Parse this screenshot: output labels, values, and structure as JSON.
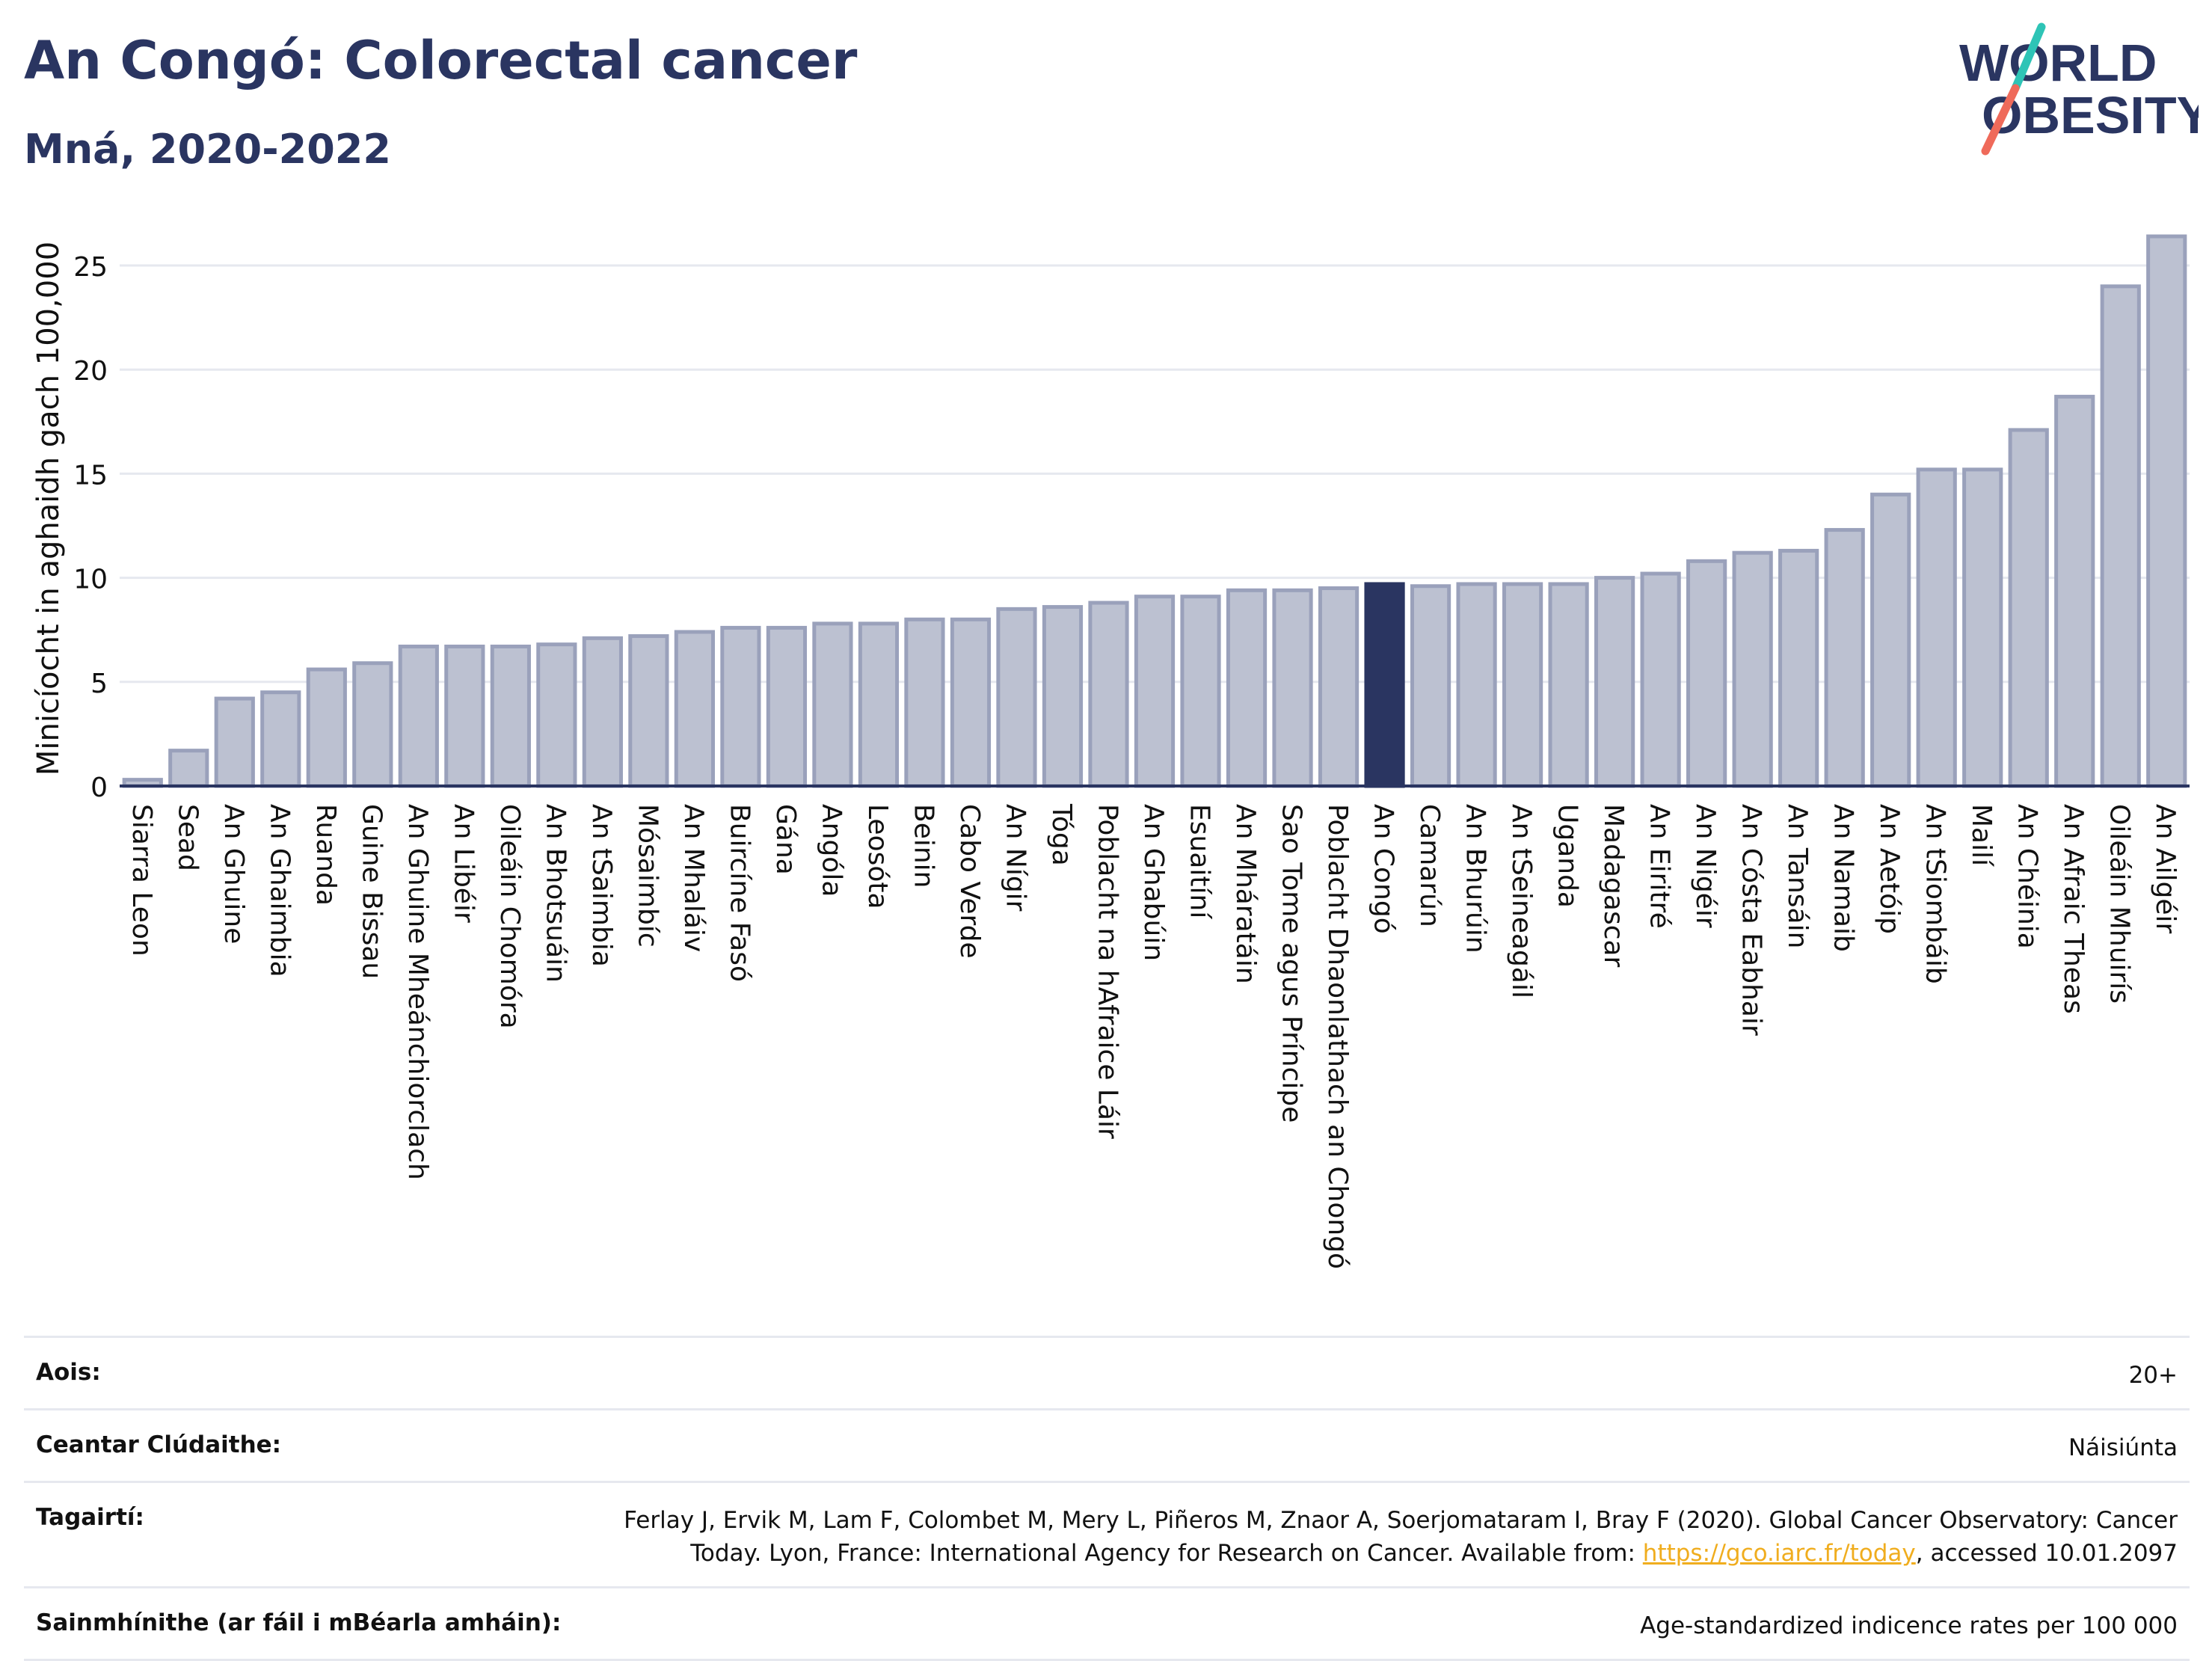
{
  "header": {
    "title": "An Congó: Colorectal cancer",
    "subtitle": "Mná, 2020-2022"
  },
  "logo": {
    "line1": "WORLD",
    "line2": "OBESITY",
    "name": "world-obesity-logo"
  },
  "colors": {
    "bar": "#bcc1d1",
    "bar_stroke": "#9aa1bb",
    "highlight": "#2a3561",
    "grid": "#e6e8ef",
    "axis": "#2a3561"
  },
  "chart_data": {
    "type": "bar",
    "ylabel": "Minicíocht in aghaidh gach 100,000",
    "ylim": [
      0,
      27
    ],
    "yticks": [
      0,
      5,
      10,
      15,
      20,
      25
    ],
    "grid": true,
    "highlight": "An Congó",
    "categories": [
      "Siarra Leon",
      "Sead",
      "An Ghuine",
      "An Ghaimbia",
      "Ruanda",
      "Guine Bissau",
      "An Ghuine Mheánchiorclach",
      "An Libéir",
      "Oileáin Chomóra",
      "An Bhotsuáin",
      "An tSaimbia",
      "Mósaimbíc",
      "An Mhaláiv",
      "Buircíne Fasó",
      "Gána",
      "Angóla",
      "Leosóta",
      "Beinin",
      "Cabo Verde",
      "An Nígir",
      "Tóga",
      "Poblacht na hAfraice Láir",
      "An Ghabúin",
      "Esuaitíní",
      "An Mháratáin",
      "Sao Tome agus Príncipe",
      "Poblacht Dhaonlathach an Chongó",
      "An Congó",
      "Camarún",
      "An Bhurúin",
      "An tSeineagáil",
      "Uganda",
      "Madagascar",
      "An Eiritré",
      "An Nigéir",
      "An Cósta Eabhair",
      "An Tansáin",
      "An Namaib",
      "An Aetóip",
      "An tSiombáib",
      "Mailí",
      "An Chéinia",
      "An Afraic Theas",
      "Oileáin Mhuirís",
      "An Ailgéir"
    ],
    "values": [
      0.3,
      1.7,
      4.2,
      4.5,
      5.6,
      5.9,
      6.7,
      6.7,
      6.7,
      6.8,
      7.1,
      7.2,
      7.4,
      7.6,
      7.6,
      7.8,
      7.8,
      8.0,
      8.0,
      8.5,
      8.6,
      8.8,
      9.1,
      9.1,
      9.4,
      9.4,
      9.5,
      9.7,
      9.6,
      9.7,
      9.7,
      9.7,
      10.0,
      10.2,
      10.8,
      11.2,
      11.3,
      12.3,
      14.0,
      15.2,
      15.2,
      17.1,
      18.7,
      24.0,
      26.4
    ]
  },
  "meta": {
    "age_label": "Aois:",
    "age_value": "20+",
    "area_label": "Ceantar Clúdaithe:",
    "area_value": "Náisiúnta",
    "ref_label": "Tagairtí:",
    "ref_text_1": "Ferlay J, Ervik M, Lam F, Colombet M, Mery L, Piñeros M, Znaor A, Soerjomataram I, Bray F (2020). Global Cancer Observatory: Cancer Today. Lyon, France: International Agency for Research on Cancer. Available from: ",
    "ref_link": "https://gco.iarc.fr/today",
    "ref_text_2": ", accessed 10.01.2097",
    "def_label": "Sainmhínithe (ar fáil i mBéarla amháin):",
    "def_value": "Age-standardized indicence rates per 100 000"
  }
}
